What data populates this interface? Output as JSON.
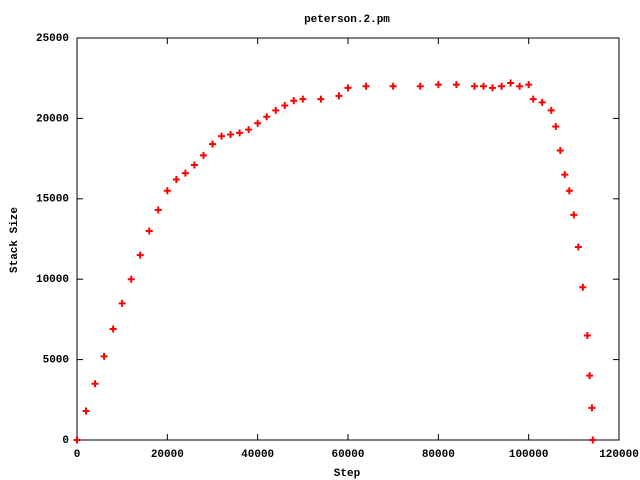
{
  "chart_data": {
    "type": "scatter",
    "title": "peterson.2.pm",
    "x_label": "Step",
    "y_label": "Stack Size",
    "xlim": [
      0,
      120000
    ],
    "xticks": [
      0,
      20000,
      40000,
      60000,
      80000,
      100000,
      120000
    ],
    "ylim": [
      0,
      25000
    ],
    "yticks": [
      0,
      5000,
      10000,
      15000,
      20000,
      25000
    ],
    "grid": false,
    "series": [
      {
        "color": "#ff0000",
        "x": [
          0,
          2000,
          4000,
          6000,
          8000,
          10000,
          12000,
          14000,
          16000,
          18000,
          20000,
          22000,
          24000,
          26000,
          28000,
          30000,
          32000,
          34000,
          36000,
          38000,
          40000,
          42000,
          44000,
          46000,
          48000,
          50000,
          54000,
          58000,
          60000,
          64000,
          70000,
          76000,
          80000,
          84000,
          88000,
          90000,
          92000,
          94000,
          96000,
          98000,
          100000,
          101000,
          103000,
          105000,
          106000,
          107000,
          108000,
          109000,
          110000,
          111000,
          112000,
          113000,
          113500,
          114000,
          114200
        ],
        "values": [
          0,
          1800,
          3500,
          5200,
          6900,
          8500,
          10000,
          11500,
          13000,
          14300,
          15500,
          16200,
          16600,
          17100,
          17700,
          18400,
          18900,
          19000,
          19100,
          19300,
          19700,
          20100,
          20500,
          20800,
          21100,
          21200,
          21200,
          21400,
          21900,
          22000,
          22000,
          22000,
          22100,
          22100,
          22000,
          22000,
          21900,
          22000,
          22200,
          22000,
          22100,
          21200,
          21000,
          20500,
          19500,
          18000,
          16500,
          15500,
          14000,
          12000,
          9500,
          6500,
          4000,
          2000,
          0
        ]
      }
    ]
  }
}
